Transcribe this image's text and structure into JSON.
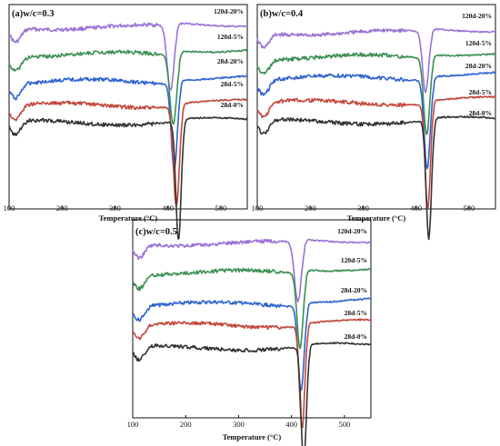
{
  "chart_data": [
    {
      "type": "line",
      "title": "(a)w/c=0.3",
      "xlabel": "Temperature (°C)",
      "ylabel": "",
      "xlim": [
        100,
        550
      ],
      "xticks": [
        100,
        200,
        300,
        400,
        500
      ],
      "series": [
        {
          "name": "120d-20%",
          "color": "#9b72d6",
          "dip_center": 405,
          "dip_depth": 0.34,
          "dip_width": 9,
          "tail": 0.04
        },
        {
          "name": "120d-5%",
          "color": "#3b8f52",
          "dip_center": 410,
          "dip_depth": 0.36,
          "dip_width": 9,
          "tail": 0.06
        },
        {
          "name": "28d-20%",
          "color": "#2f63cf",
          "dip_center": 412,
          "dip_depth": 0.45,
          "dip_width": 8,
          "tail": 0.05
        },
        {
          "name": "28d-5%",
          "color": "#c2473a",
          "dip_center": 416,
          "dip_depth": 0.52,
          "dip_width": 8,
          "tail": 0.04
        },
        {
          "name": "28d-0%",
          "color": "#333333",
          "dip_center": 420,
          "dip_depth": 0.62,
          "dip_width": 7,
          "tail": 0.03
        }
      ]
    },
    {
      "type": "line",
      "title": "(b)w/c=0.4",
      "xlabel": "Temperature (°C)",
      "ylabel": "",
      "xlim": [
        100,
        550
      ],
      "xticks": [
        100,
        200,
        300,
        400,
        500
      ],
      "series": [
        {
          "name": "120d-20%",
          "color": "#9b72d6",
          "dip_center": 418,
          "dip_depth": 0.32,
          "dip_width": 8,
          "tail": 0.04
        },
        {
          "name": "120d-5%",
          "color": "#3b8f52",
          "dip_center": 420,
          "dip_depth": 0.4,
          "dip_width": 8,
          "tail": 0.05
        },
        {
          "name": "28d-20%",
          "color": "#2f63cf",
          "dip_center": 421,
          "dip_depth": 0.46,
          "dip_width": 8,
          "tail": 0.05
        },
        {
          "name": "28d-5%",
          "color": "#c2473a",
          "dip_center": 422,
          "dip_depth": 0.55,
          "dip_width": 7,
          "tail": 0.04
        },
        {
          "name": "28d-0%",
          "color": "#333333",
          "dip_center": 424,
          "dip_depth": 0.62,
          "dip_width": 7,
          "tail": 0.03
        }
      ]
    },
    {
      "type": "line",
      "title": "(c)w/c=0.5",
      "xlabel": "Temperature (°C)",
      "ylabel": "",
      "xlim": [
        100,
        550
      ],
      "xticks": [
        100,
        200,
        300,
        400,
        500
      ],
      "series": [
        {
          "name": "120d-20%",
          "color": "#9b72d6",
          "dip_center": 412,
          "dip_depth": 0.32,
          "dip_width": 9,
          "tail": 0.04
        },
        {
          "name": "120d-5%",
          "color": "#3b8f52",
          "dip_center": 416,
          "dip_depth": 0.4,
          "dip_width": 8,
          "tail": 0.05
        },
        {
          "name": "28d-20%",
          "color": "#2f63cf",
          "dip_center": 418,
          "dip_depth": 0.45,
          "dip_width": 8,
          "tail": 0.05
        },
        {
          "name": "28d-5%",
          "color": "#c2473a",
          "dip_center": 420,
          "dip_depth": 0.55,
          "dip_width": 7,
          "tail": 0.04
        },
        {
          "name": "28d-0%",
          "color": "#333333",
          "dip_center": 423,
          "dip_depth": 0.62,
          "dip_width": 7,
          "tail": 0.03
        }
      ]
    }
  ]
}
